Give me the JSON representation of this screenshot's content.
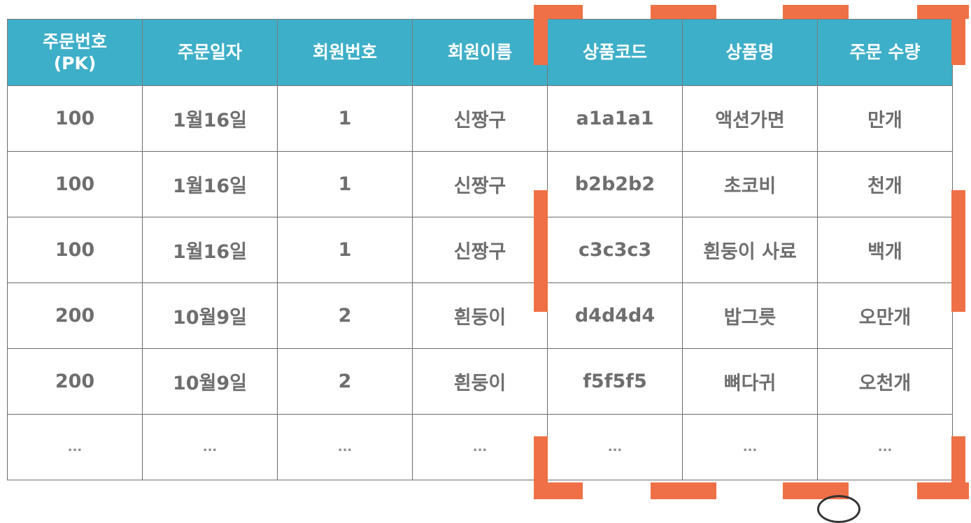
{
  "table": {
    "headers": [
      "주문번호\n(PK)",
      "주문일자",
      "회원번호",
      "회원이름",
      "상품코드",
      "상품명",
      "주문 수량"
    ],
    "rows": [
      [
        "100",
        "1월16일",
        "1",
        "신짱구",
        "a1a1a1",
        "액션가면",
        "만개"
      ],
      [
        "100",
        "1월16일",
        "1",
        "신짱구",
        "b2b2b2",
        "초코비",
        "천개"
      ],
      [
        "100",
        "1월16일",
        "1",
        "신짱구",
        "c3c3c3",
        "흰둥이 사료",
        "백개"
      ],
      [
        "200",
        "10월9일",
        "2",
        "흰둥이",
        "d4d4d4",
        "밥그릇",
        "오만개"
      ],
      [
        "200",
        "10월9일",
        "2",
        "흰둥이",
        "f5f5f5",
        "뼈다귀",
        "오천개"
      ],
      [
        "...",
        "...",
        "...",
        "...",
        "...",
        "...",
        "..."
      ]
    ]
  },
  "highlight": {
    "color": "#ef7046",
    "style": "dashed-frame",
    "columns": [
      "상품코드",
      "상품명",
      "주문 수량"
    ]
  },
  "colors": {
    "header_bg": "#3eafc9",
    "header_text": "#ffffff",
    "cell_text": "#6e6e6e",
    "border": "#6b6b6b"
  }
}
